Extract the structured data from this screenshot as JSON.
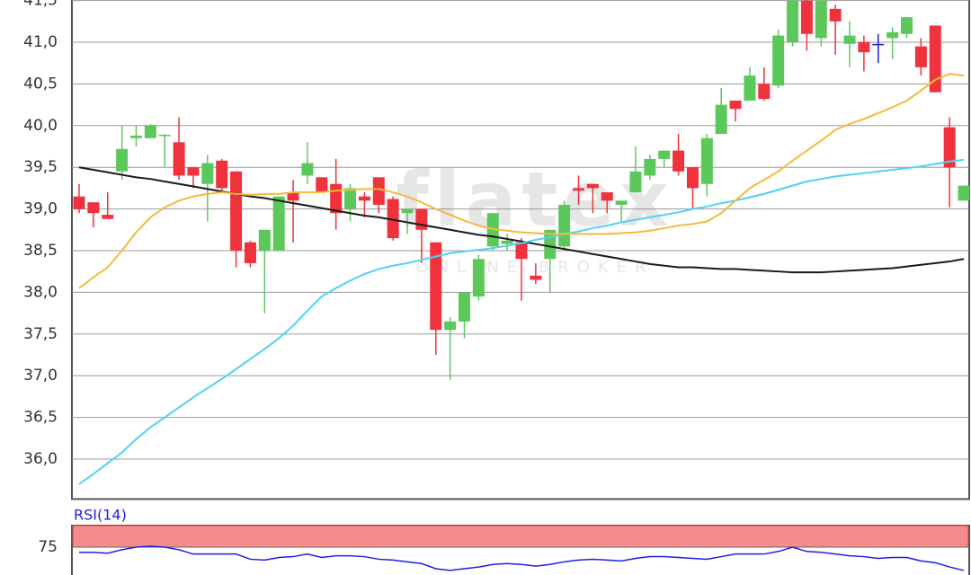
{
  "chart_data": [
    {
      "type": "candlestick",
      "watermark": "flatex",
      "watermark_sub": "ONLINE BROKER",
      "open": [
        39.15,
        39.08,
        38.93,
        39.45,
        39.85,
        39.85,
        39.88,
        39.8,
        39.5,
        39.3,
        39.58,
        39.45,
        38.6,
        38.5,
        38.5,
        39.2,
        39.4,
        39.38,
        39.3,
        39.0,
        39.15,
        39.38,
        39.12,
        38.95,
        39.0,
        38.6,
        37.55,
        37.65,
        37.95,
        38.55,
        38.58,
        38.6,
        38.2,
        38.4,
        38.55,
        39.25,
        39.3,
        39.2,
        39.05,
        39.2,
        39.4,
        39.6,
        39.7,
        39.5,
        39.3,
        39.9,
        40.3,
        40.3,
        40.5,
        40.48,
        41.0,
        41.5,
        41.05,
        41.4,
        40.98,
        41.0,
        40.98,
        41.05,
        41.1,
        40.95,
        41.2,
        39.98,
        39.1
      ],
      "high": [
        39.3,
        39.08,
        39.2,
        40.0,
        40.0,
        40.02,
        39.9,
        40.1,
        39.5,
        39.65,
        39.6,
        39.45,
        38.62,
        38.75,
        39.15,
        39.35,
        39.8,
        39.38,
        39.6,
        39.3,
        39.2,
        39.38,
        39.15,
        39.0,
        39.0,
        38.6,
        37.7,
        38.0,
        38.45,
        38.95,
        38.7,
        38.65,
        38.35,
        38.75,
        39.1,
        39.4,
        39.3,
        39.2,
        39.1,
        39.75,
        39.65,
        39.7,
        39.9,
        39.5,
        39.9,
        40.45,
        40.3,
        40.7,
        40.7,
        41.15,
        41.6,
        41.6,
        41.6,
        41.45,
        41.25,
        41.08,
        41.1,
        41.18,
        41.3,
        41.05,
        41.2,
        40.1,
        39.28
      ],
      "low": [
        38.95,
        38.78,
        38.88,
        39.35,
        39.75,
        39.85,
        39.5,
        39.35,
        39.25,
        38.85,
        39.2,
        38.3,
        38.3,
        37.75,
        38.5,
        38.6,
        39.3,
        39.2,
        38.75,
        38.85,
        38.9,
        38.95,
        38.62,
        38.7,
        38.35,
        37.25,
        36.95,
        37.45,
        37.9,
        38.5,
        38.5,
        37.9,
        38.1,
        38.0,
        38.5,
        39.05,
        38.95,
        38.95,
        38.85,
        39.2,
        39.35,
        39.5,
        39.4,
        39.0,
        39.15,
        39.9,
        40.05,
        40.3,
        40.3,
        40.45,
        40.95,
        40.9,
        40.95,
        40.85,
        40.7,
        40.65,
        40.75,
        40.8,
        41.05,
        40.6,
        40.4,
        39.02,
        39.1
      ],
      "close": [
        39.0,
        38.95,
        38.88,
        39.72,
        39.88,
        40.0,
        39.89,
        39.4,
        39.4,
        39.55,
        39.25,
        38.5,
        38.35,
        38.75,
        39.15,
        39.1,
        39.55,
        39.2,
        38.95,
        39.25,
        39.1,
        39.05,
        38.65,
        39.0,
        38.75,
        37.55,
        37.65,
        38.0,
        38.4,
        38.95,
        38.62,
        38.4,
        38.15,
        38.75,
        39.05,
        39.22,
        39.25,
        39.1,
        39.1,
        39.45,
        39.6,
        39.7,
        39.45,
        39.25,
        39.85,
        40.25,
        40.2,
        40.6,
        40.32,
        41.08,
        41.5,
        41.1,
        41.5,
        41.25,
        41.08,
        40.88,
        40.98,
        41.12,
        41.3,
        40.7,
        40.4,
        39.5,
        39.28
      ],
      "up_color": "#5cc85c",
      "down_color": "#f0323c",
      "doji_color": "#1e1ee6",
      "lines": [
        {
          "color": "#1a1a1a",
          "values": [
            39.5,
            39.47,
            39.44,
            39.41,
            39.38,
            39.36,
            39.33,
            39.3,
            39.27,
            39.24,
            39.21,
            39.18,
            39.15,
            39.13,
            39.1,
            39.07,
            39.04,
            39.01,
            38.98,
            38.95,
            38.92,
            38.9,
            38.87,
            38.84,
            38.81,
            38.78,
            38.75,
            38.72,
            38.69,
            38.67,
            38.64,
            38.61,
            38.58,
            38.55,
            38.52,
            38.49,
            38.46,
            38.43,
            38.4,
            38.37,
            38.34,
            38.32,
            38.3,
            38.3,
            38.29,
            38.28,
            38.28,
            38.27,
            38.26,
            38.25,
            38.24,
            38.24,
            38.24,
            38.25,
            38.26,
            38.27,
            38.28,
            38.29,
            38.31,
            38.33,
            38.35,
            38.37,
            38.4
          ]
        },
        {
          "color": "#4fd2f5",
          "values": [
            35.7,
            35.82,
            35.95,
            36.08,
            36.24,
            36.38,
            36.5,
            36.62,
            36.74,
            36.85,
            36.96,
            37.08,
            37.2,
            37.32,
            37.45,
            37.6,
            37.78,
            37.95,
            38.05,
            38.14,
            38.22,
            38.28,
            38.32,
            38.35,
            38.39,
            38.43,
            38.47,
            38.49,
            38.51,
            38.53,
            38.56,
            38.59,
            38.63,
            38.66,
            38.7,
            38.73,
            38.77,
            38.8,
            38.84,
            38.87,
            38.9,
            38.93,
            38.96,
            39.0,
            39.03,
            39.07,
            39.1,
            39.14,
            39.18,
            39.23,
            39.28,
            39.33,
            39.36,
            39.39,
            39.41,
            39.43,
            39.45,
            39.47,
            39.49,
            39.51,
            39.54,
            39.57,
            39.59
          ]
        },
        {
          "color": "#f5b93c",
          "values": [
            38.05,
            38.18,
            38.3,
            38.5,
            38.72,
            38.9,
            39.02,
            39.1,
            39.15,
            39.18,
            39.2,
            39.18,
            39.17,
            39.18,
            39.18,
            39.2,
            39.2,
            39.2,
            39.22,
            39.23,
            39.24,
            39.24,
            39.2,
            39.15,
            39.08,
            39.0,
            38.93,
            38.86,
            38.8,
            38.76,
            38.74,
            38.72,
            38.71,
            38.7,
            38.7,
            38.7,
            38.7,
            38.7,
            38.71,
            38.72,
            38.74,
            38.77,
            38.8,
            38.82,
            38.85,
            38.95,
            39.1,
            39.25,
            39.35,
            39.45,
            39.58,
            39.7,
            39.82,
            39.95,
            40.02,
            40.08,
            40.15,
            40.22,
            40.3,
            40.42,
            40.55,
            40.62,
            40.6
          ]
        }
      ],
      "ylim": [
        35.52,
        41.51
      ],
      "yticks": [
        {
          "value": 36,
          "label": "36,0"
        },
        {
          "value": 36.5,
          "label": "36,5"
        },
        {
          "value": 37,
          "label": "37,0"
        },
        {
          "value": 37.5,
          "label": "37,5"
        },
        {
          "value": 38,
          "label": "38,0"
        },
        {
          "value": 38.5,
          "label": "38,5"
        },
        {
          "value": 39,
          "label": "39,0"
        },
        {
          "value": 39.5,
          "label": "39,5"
        },
        {
          "value": 40,
          "label": "40,0"
        },
        {
          "value": 40.5,
          "label": "40,5"
        },
        {
          "value": 41,
          "label": "41,0"
        },
        {
          "value": 41.5,
          "label": "41,5"
        }
      ],
      "grid": true
    },
    {
      "type": "line",
      "title": "RSI(14)",
      "series": [
        {
          "color": "#1e1ee6",
          "values": [
            69,
            69,
            68,
            72,
            75,
            76,
            75,
            72,
            67,
            67,
            67,
            67,
            61,
            60,
            63,
            64,
            67,
            63,
            65,
            65,
            64,
            61,
            60,
            58,
            56,
            50,
            48,
            50,
            52,
            55,
            56,
            55,
            53,
            55,
            58,
            60,
            61,
            60,
            59,
            62,
            64,
            64,
            63,
            62,
            61,
            64,
            67,
            67,
            67,
            70,
            75,
            70,
            69,
            67,
            65,
            64,
            62,
            63,
            63,
            59,
            57,
            52,
            48
          ]
        }
      ],
      "ylim": [
        43,
        100
      ],
      "yticks": [
        75
      ],
      "band": [
        75,
        100
      ],
      "band_color": "#f58c8c"
    }
  ]
}
